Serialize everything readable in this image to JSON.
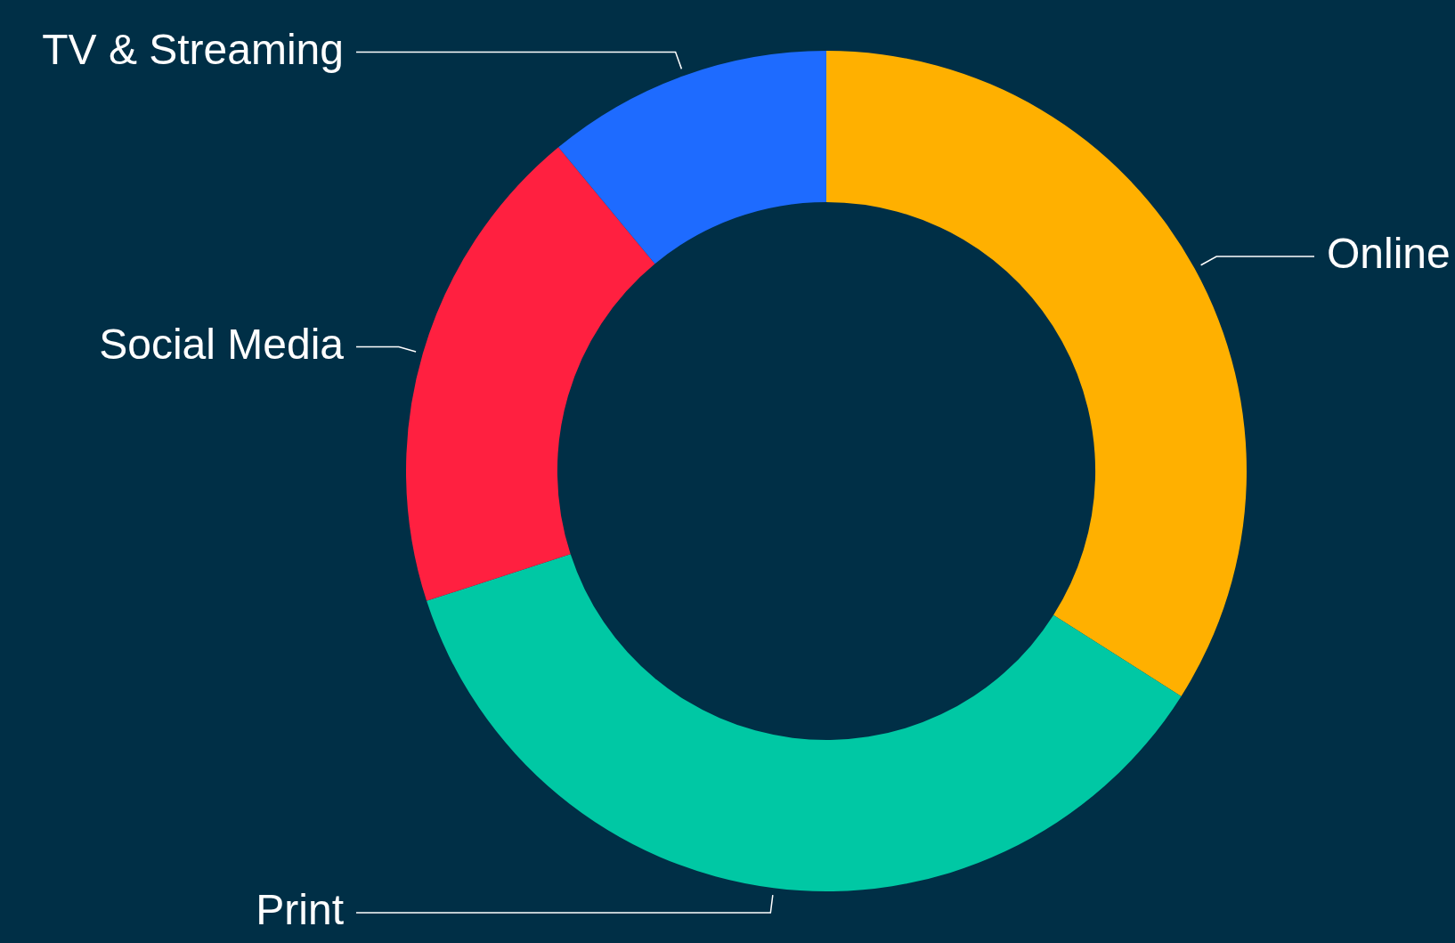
{
  "chart_data": {
    "type": "donut",
    "categories": [
      "Online",
      "Print",
      "Social Media",
      "TV & Streaming"
    ],
    "values": [
      34,
      36,
      19,
      11
    ],
    "colors": [
      "#ffb000",
      "#00c8a4",
      "#ff2040",
      "#1e6bff"
    ],
    "legend": false
  }
}
